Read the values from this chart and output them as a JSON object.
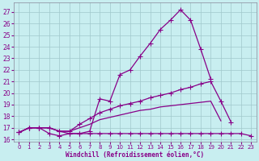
{
  "xlabel": "Windchill (Refroidissement éolien,°C)",
  "xlim": [
    -0.5,
    23.5
  ],
  "ylim": [
    15.8,
    27.8
  ],
  "yticks": [
    16,
    17,
    18,
    19,
    20,
    21,
    22,
    23,
    24,
    25,
    26,
    27
  ],
  "xticks": [
    0,
    1,
    2,
    3,
    4,
    5,
    6,
    7,
    8,
    9,
    10,
    11,
    12,
    13,
    14,
    15,
    16,
    17,
    18,
    19,
    20,
    21,
    22,
    23
  ],
  "bg_color": "#c8eef0",
  "line_color": "#880088",
  "grid_color": "#a0c8cc",
  "lines": [
    {
      "x": [
        0,
        1,
        2,
        3,
        4,
        5,
        6,
        7,
        8,
        9,
        10,
        11,
        12,
        13,
        14,
        15,
        16,
        17,
        18,
        19
      ],
      "y": [
        16.6,
        17.0,
        17.0,
        17.0,
        16.7,
        16.5,
        16.5,
        16.7,
        19.5,
        19.3,
        21.6,
        22.0,
        23.2,
        24.3,
        25.5,
        26.3,
        27.2,
        26.3,
        23.8,
        21.2
      ],
      "marker": true
    },
    {
      "x": [
        0,
        1,
        2,
        3,
        4,
        5,
        6,
        7,
        8,
        9,
        10,
        11,
        12,
        13,
        14,
        15,
        16,
        17,
        18,
        19,
        20,
        21,
        22,
        23
      ],
      "y": [
        16.6,
        17.0,
        17.0,
        17.0,
        16.7,
        16.7,
        17.3,
        17.8,
        18.3,
        18.6,
        18.9,
        19.1,
        19.3,
        19.6,
        19.8,
        20.0,
        20.3,
        20.5,
        20.8,
        21.0,
        19.3,
        17.5,
        null,
        null
      ],
      "marker": true
    },
    {
      "x": [
        0,
        1,
        2,
        3,
        4,
        5,
        6,
        7,
        8,
        9,
        10,
        11,
        12,
        13,
        14,
        15,
        16,
        17,
        18,
        19,
        20,
        21,
        22,
        23
      ],
      "y": [
        16.6,
        17.0,
        17.0,
        17.0,
        16.7,
        16.7,
        17.0,
        17.3,
        17.7,
        17.9,
        18.1,
        18.3,
        18.5,
        18.6,
        18.8,
        18.9,
        19.0,
        19.1,
        19.2,
        19.3,
        17.6,
        null,
        null,
        null
      ],
      "marker": false
    },
    {
      "x": [
        0,
        1,
        2,
        3,
        4,
        5,
        6,
        7,
        8,
        9,
        10,
        11,
        12,
        13,
        14,
        15,
        16,
        17,
        18,
        19,
        20,
        21,
        22,
        23
      ],
      "y": [
        16.6,
        17.0,
        17.0,
        16.5,
        16.3,
        16.5,
        16.5,
        16.5,
        16.5,
        16.5,
        16.5,
        16.5,
        16.5,
        16.5,
        16.5,
        16.5,
        16.5,
        16.5,
        16.5,
        16.5,
        16.5,
        16.5,
        16.5,
        16.3
      ],
      "marker": true
    }
  ]
}
